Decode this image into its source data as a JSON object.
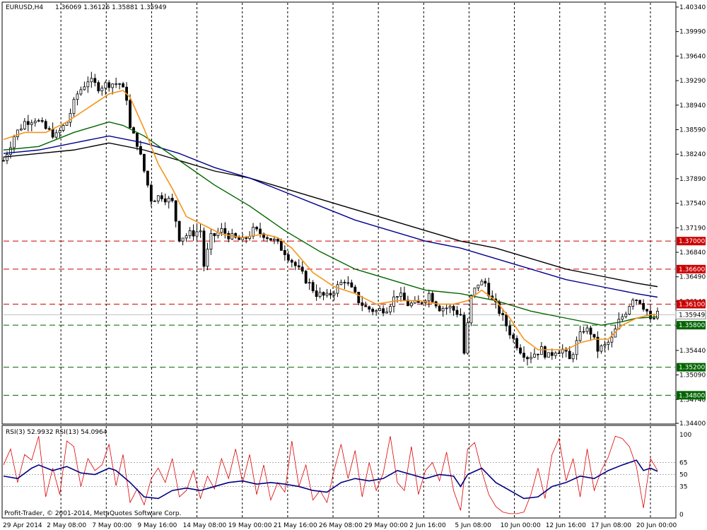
{
  "header": {
    "symbol": "EURUSD,H4",
    "ohlc": "1.36069 1.36126 1.35881 1.35949"
  },
  "rsi_header": {
    "label": "RSI(3) 52.9932  RSI(13) 54.0964"
  },
  "copyright": "Profit-Trader, © 2001-2014, MetaQuotes Software Corp.",
  "chart_data": {
    "type": "line",
    "price_axis": {
      "ylim": [
        1.344,
        1.404
      ],
      "ticks": [
        "1.40340",
        "1.39990",
        "1.39640",
        "1.39290",
        "1.38940",
        "1.38590",
        "1.38240",
        "1.37890",
        "1.37540",
        "1.37190",
        "1.36840",
        "1.36490",
        "1.36140",
        "1.35790",
        "1.35440",
        "1.35090",
        "1.34740",
        "1.34400"
      ]
    },
    "x_ticks": [
      "29 Apr 2014",
      "2 May 08:00",
      "7 May 00:00",
      "9 May 16:00",
      "14 May 08:00",
      "19 May 00:00",
      "21 May 16:00",
      "26 May 08:00",
      "29 May 00:00",
      "2 Jun 16:00",
      "5 Jun 08:00",
      "10 Jun 00:00",
      "12 Jun 16:00",
      "17 Jun 08:00",
      "20 Jun 00:00"
    ],
    "current_price": "1.35949",
    "levels": [
      {
        "value": 1.37,
        "label": "1.37000",
        "color": "#cc0000"
      },
      {
        "value": 1.366,
        "label": "1.36600",
        "color": "#cc0000"
      },
      {
        "value": 1.361,
        "label": "1.36100",
        "color": "#cc0000"
      },
      {
        "value": 1.358,
        "label": "1.35800",
        "color": "#006400"
      },
      {
        "value": 1.352,
        "label": "1.35200",
        "color": "#006400"
      },
      {
        "value": 1.348,
        "label": "1.34800",
        "color": "#006400"
      }
    ],
    "price_path": [
      [
        0,
        1.3815
      ],
      [
        3,
        1.385
      ],
      [
        6,
        1.387
      ],
      [
        9,
        1.3875
      ],
      [
        12,
        1.386
      ],
      [
        15,
        1.385
      ],
      [
        18,
        1.387
      ],
      [
        21,
        1.391
      ],
      [
        24,
        1.393
      ],
      [
        27,
        1.392
      ],
      [
        30,
        1.3925
      ],
      [
        33,
        1.3925
      ],
      [
        35,
        1.3905
      ],
      [
        36,
        1.386
      ],
      [
        38,
        1.384
      ],
      [
        40,
        1.38
      ],
      [
        42,
        1.376
      ],
      [
        45,
        1.3765
      ],
      [
        48,
        1.3755
      ],
      [
        50,
        1.3705
      ],
      [
        53,
        1.371
      ],
      [
        56,
        1.3715
      ],
      [
        57,
        1.3665
      ],
      [
        59,
        1.3705
      ],
      [
        62,
        1.3715
      ],
      [
        65,
        1.3705
      ],
      [
        68,
        1.37
      ],
      [
        71,
        1.3715
      ],
      [
        74,
        1.371
      ],
      [
        77,
        1.37
      ],
      [
        80,
        1.3685
      ],
      [
        83,
        1.3665
      ],
      [
        86,
        1.3645
      ],
      [
        89,
        1.3625
      ],
      [
        92,
        1.362
      ],
      [
        95,
        1.3635
      ],
      [
        97,
        1.3645
      ],
      [
        99,
        1.363
      ],
      [
        101,
        1.3615
      ],
      [
        103,
        1.3605
      ],
      [
        106,
        1.36
      ],
      [
        109,
        1.3605
      ],
      [
        112,
        1.3625
      ],
      [
        115,
        1.361
      ],
      [
        118,
        1.361
      ],
      [
        121,
        1.3625
      ],
      [
        124,
        1.3605
      ],
      [
        127,
        1.3605
      ],
      [
        130,
        1.3595
      ],
      [
        131,
        1.354
      ],
      [
        133,
        1.362
      ],
      [
        135,
        1.364
      ],
      [
        137,
        1.364
      ],
      [
        139,
        1.3615
      ],
      [
        141,
        1.36
      ],
      [
        143,
        1.358
      ],
      [
        145,
        1.356
      ],
      [
        147,
        1.3545
      ],
      [
        149,
        1.3535
      ],
      [
        151,
        1.354
      ],
      [
        153,
        1.3545
      ],
      [
        155,
        1.3535
      ],
      [
        157,
        1.3545
      ],
      [
        159,
        1.3545
      ],
      [
        161,
        1.353
      ],
      [
        163,
        1.3555
      ],
      [
        165,
        1.3575
      ],
      [
        167,
        1.357
      ],
      [
        169,
        1.3545
      ],
      [
        171,
        1.355
      ],
      [
        173,
        1.356
      ],
      [
        175,
        1.3585
      ],
      [
        177,
        1.36
      ],
      [
        179,
        1.362
      ],
      [
        181,
        1.3615
      ],
      [
        183,
        1.36
      ],
      [
        184,
        1.3585
      ],
      [
        186,
        1.3595
      ]
    ],
    "ema_fast": [
      [
        0,
        1.3845
      ],
      [
        6,
        1.3855
      ],
      [
        12,
        1.3855
      ],
      [
        18,
        1.387
      ],
      [
        24,
        1.389
      ],
      [
        30,
        1.391
      ],
      [
        34,
        1.3915
      ],
      [
        36,
        1.3905
      ],
      [
        40,
        1.386
      ],
      [
        44,
        1.381
      ],
      [
        48,
        1.3775
      ],
      [
        52,
        1.3735
      ],
      [
        56,
        1.3725
      ],
      [
        62,
        1.371
      ],
      [
        68,
        1.3705
      ],
      [
        74,
        1.371
      ],
      [
        78,
        1.3705
      ],
      [
        82,
        1.369
      ],
      [
        88,
        1.3655
      ],
      [
        94,
        1.3635
      ],
      [
        100,
        1.3625
      ],
      [
        106,
        1.361
      ],
      [
        112,
        1.3615
      ],
      [
        118,
        1.3615
      ],
      [
        124,
        1.361
      ],
      [
        128,
        1.361
      ],
      [
        132,
        1.3615
      ],
      [
        136,
        1.363
      ],
      [
        140,
        1.3615
      ],
      [
        144,
        1.359
      ],
      [
        148,
        1.356
      ],
      [
        152,
        1.3545
      ],
      [
        156,
        1.3545
      ],
      [
        160,
        1.3545
      ],
      [
        164,
        1.3555
      ],
      [
        168,
        1.356
      ],
      [
        172,
        1.356
      ],
      [
        176,
        1.358
      ],
      [
        180,
        1.359
      ],
      [
        184,
        1.3595
      ],
      [
        186,
        1.3595
      ]
    ],
    "ema_mid": [
      [
        0,
        1.383
      ],
      [
        10,
        1.3835
      ],
      [
        20,
        1.3855
      ],
      [
        30,
        1.387
      ],
      [
        34,
        1.3865
      ],
      [
        40,
        1.385
      ],
      [
        50,
        1.3815
      ],
      [
        60,
        1.378
      ],
      [
        70,
        1.375
      ],
      [
        80,
        1.3715
      ],
      [
        90,
        1.3685
      ],
      [
        100,
        1.366
      ],
      [
        110,
        1.3645
      ],
      [
        120,
        1.363
      ],
      [
        130,
        1.3625
      ],
      [
        140,
        1.3615
      ],
      [
        150,
        1.36
      ],
      [
        160,
        1.359
      ],
      [
        170,
        1.358
      ],
      [
        176,
        1.3585
      ],
      [
        180,
        1.359
      ],
      [
        186,
        1.3592
      ]
    ],
    "ema_slow_blue": [
      [
        0,
        1.3825
      ],
      [
        10,
        1.383
      ],
      [
        20,
        1.384
      ],
      [
        30,
        1.385
      ],
      [
        40,
        1.384
      ],
      [
        50,
        1.3825
      ],
      [
        60,
        1.3805
      ],
      [
        70,
        1.379
      ],
      [
        80,
        1.377
      ],
      [
        90,
        1.375
      ],
      [
        100,
        1.373
      ],
      [
        110,
        1.3715
      ],
      [
        120,
        1.37
      ],
      [
        130,
        1.369
      ],
      [
        140,
        1.3675
      ],
      [
        150,
        1.366
      ],
      [
        160,
        1.3645
      ],
      [
        170,
        1.3635
      ],
      [
        180,
        1.3625
      ],
      [
        186,
        1.362
      ]
    ],
    "ema_slow_black": [
      [
        0,
        1.382
      ],
      [
        10,
        1.3825
      ],
      [
        20,
        1.383
      ],
      [
        30,
        1.384
      ],
      [
        40,
        1.383
      ],
      [
        50,
        1.3815
      ],
      [
        60,
        1.38
      ],
      [
        70,
        1.379
      ],
      [
        80,
        1.3775
      ],
      [
        90,
        1.376
      ],
      [
        100,
        1.3745
      ],
      [
        110,
        1.373
      ],
      [
        120,
        1.3715
      ],
      [
        130,
        1.37
      ],
      [
        140,
        1.369
      ],
      [
        150,
        1.3675
      ],
      [
        160,
        1.366
      ],
      [
        170,
        1.365
      ],
      [
        180,
        1.364
      ],
      [
        186,
        1.3635
      ]
    ],
    "rsi_axis": {
      "ticks": [
        "100",
        "65",
        "50",
        "35",
        "0"
      ],
      "levels": [
        65,
        50,
        35
      ]
    },
    "rsi_fast": [
      [
        0,
        62
      ],
      [
        2,
        82
      ],
      [
        4,
        40
      ],
      [
        6,
        75
      ],
      [
        8,
        68
      ],
      [
        10,
        98
      ],
      [
        12,
        22
      ],
      [
        14,
        58
      ],
      [
        16,
        25
      ],
      [
        18,
        92
      ],
      [
        20,
        85
      ],
      [
        22,
        35
      ],
      [
        24,
        70
      ],
      [
        26,
        55
      ],
      [
        28,
        62
      ],
      [
        30,
        88
      ],
      [
        32,
        36
      ],
      [
        34,
        75
      ],
      [
        36,
        15
      ],
      [
        38,
        32
      ],
      [
        40,
        12
      ],
      [
        42,
        45
      ],
      [
        44,
        58
      ],
      [
        46,
        40
      ],
      [
        48,
        70
      ],
      [
        50,
        22
      ],
      [
        52,
        30
      ],
      [
        54,
        55
      ],
      [
        56,
        20
      ],
      [
        58,
        48
      ],
      [
        60,
        32
      ],
      [
        62,
        70
      ],
      [
        64,
        45
      ],
      [
        66,
        82
      ],
      [
        68,
        40
      ],
      [
        70,
        75
      ],
      [
        72,
        25
      ],
      [
        74,
        62
      ],
      [
        76,
        18
      ],
      [
        78,
        40
      ],
      [
        80,
        28
      ],
      [
        82,
        92
      ],
      [
        84,
        35
      ],
      [
        86,
        62
      ],
      [
        88,
        18
      ],
      [
        90,
        30
      ],
      [
        92,
        15
      ],
      [
        94,
        55
      ],
      [
        96,
        88
      ],
      [
        98,
        45
      ],
      [
        100,
        80
      ],
      [
        102,
        22
      ],
      [
        104,
        65
      ],
      [
        106,
        30
      ],
      [
        108,
        52
      ],
      [
        110,
        98
      ],
      [
        112,
        40
      ],
      [
        114,
        30
      ],
      [
        116,
        85
      ],
      [
        118,
        25
      ],
      [
        120,
        55
      ],
      [
        122,
        65
      ],
      [
        124,
        42
      ],
      [
        126,
        78
      ],
      [
        128,
        30
      ],
      [
        130,
        5
      ],
      [
        132,
        82
      ],
      [
        134,
        90
      ],
      [
        136,
        55
      ],
      [
        138,
        25
      ],
      [
        140,
        10
      ],
      [
        142,
        3
      ],
      [
        144,
        1
      ],
      [
        146,
        1
      ],
      [
        148,
        3
      ],
      [
        150,
        25
      ],
      [
        152,
        58
      ],
      [
        154,
        20
      ],
      [
        156,
        75
      ],
      [
        158,
        95
      ],
      [
        160,
        42
      ],
      [
        162,
        70
      ],
      [
        164,
        22
      ],
      [
        166,
        82
      ],
      [
        168,
        30
      ],
      [
        170,
        55
      ],
      [
        172,
        72
      ],
      [
        174,
        98
      ],
      [
        176,
        95
      ],
      [
        178,
        85
      ],
      [
        180,
        60
      ],
      [
        182,
        8
      ],
      [
        184,
        70
      ],
      [
        186,
        55
      ]
    ],
    "rsi_slow": [
      [
        0,
        48
      ],
      [
        4,
        45
      ],
      [
        8,
        58
      ],
      [
        10,
        62
      ],
      [
        14,
        55
      ],
      [
        18,
        60
      ],
      [
        22,
        52
      ],
      [
        26,
        50
      ],
      [
        30,
        58
      ],
      [
        32,
        55
      ],
      [
        36,
        40
      ],
      [
        40,
        22
      ],
      [
        44,
        20
      ],
      [
        48,
        30
      ],
      [
        52,
        33
      ],
      [
        56,
        30
      ],
      [
        60,
        35
      ],
      [
        64,
        40
      ],
      [
        68,
        42
      ],
      [
        72,
        38
      ],
      [
        76,
        40
      ],
      [
        80,
        38
      ],
      [
        84,
        35
      ],
      [
        88,
        30
      ],
      [
        92,
        28
      ],
      [
        96,
        40
      ],
      [
        100,
        45
      ],
      [
        104,
        42
      ],
      [
        108,
        45
      ],
      [
        112,
        55
      ],
      [
        116,
        50
      ],
      [
        120,
        45
      ],
      [
        124,
        50
      ],
      [
        128,
        48
      ],
      [
        130,
        35
      ],
      [
        132,
        50
      ],
      [
        136,
        58
      ],
      [
        140,
        40
      ],
      [
        144,
        30
      ],
      [
        148,
        20
      ],
      [
        152,
        22
      ],
      [
        156,
        35
      ],
      [
        160,
        40
      ],
      [
        164,
        48
      ],
      [
        168,
        45
      ],
      [
        172,
        55
      ],
      [
        176,
        62
      ],
      [
        180,
        68
      ],
      [
        182,
        55
      ],
      [
        184,
        58
      ],
      [
        186,
        54
      ]
    ]
  }
}
